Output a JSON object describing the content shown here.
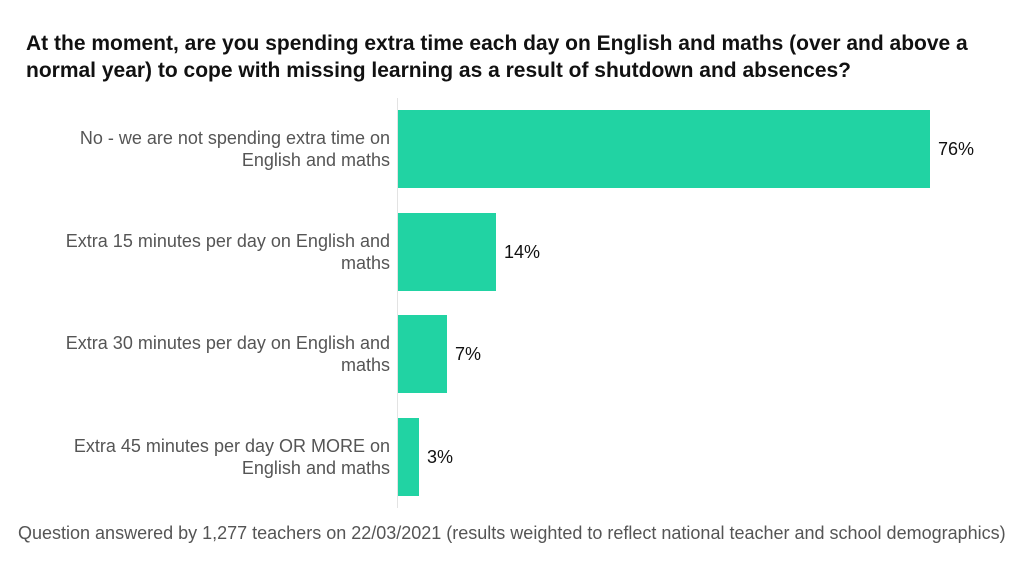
{
  "chart_data": {
    "type": "bar",
    "orientation": "horizontal",
    "title": "At the moment, are you spending extra time each day on English and maths (over and above a normal year) to cope with missing learning as a result of shutdown and absences?",
    "categories": [
      "No - we are not spending extra time on English and maths",
      "Extra 15 minutes per day on English and maths",
      "Extra 30 minutes per day on English and maths",
      "Extra 45 minutes per day OR MORE on English and maths"
    ],
    "values": [
      76,
      14,
      7,
      3
    ],
    "value_labels": [
      "76%",
      "14%",
      "7%",
      "3%"
    ],
    "xlim": [
      0,
      100
    ],
    "grid": false,
    "bar_color": "#21d3a3",
    "footnote": "Question answered by 1,277 teachers on 22/03/2021 (results weighted to reflect national teacher and school demographics)"
  }
}
